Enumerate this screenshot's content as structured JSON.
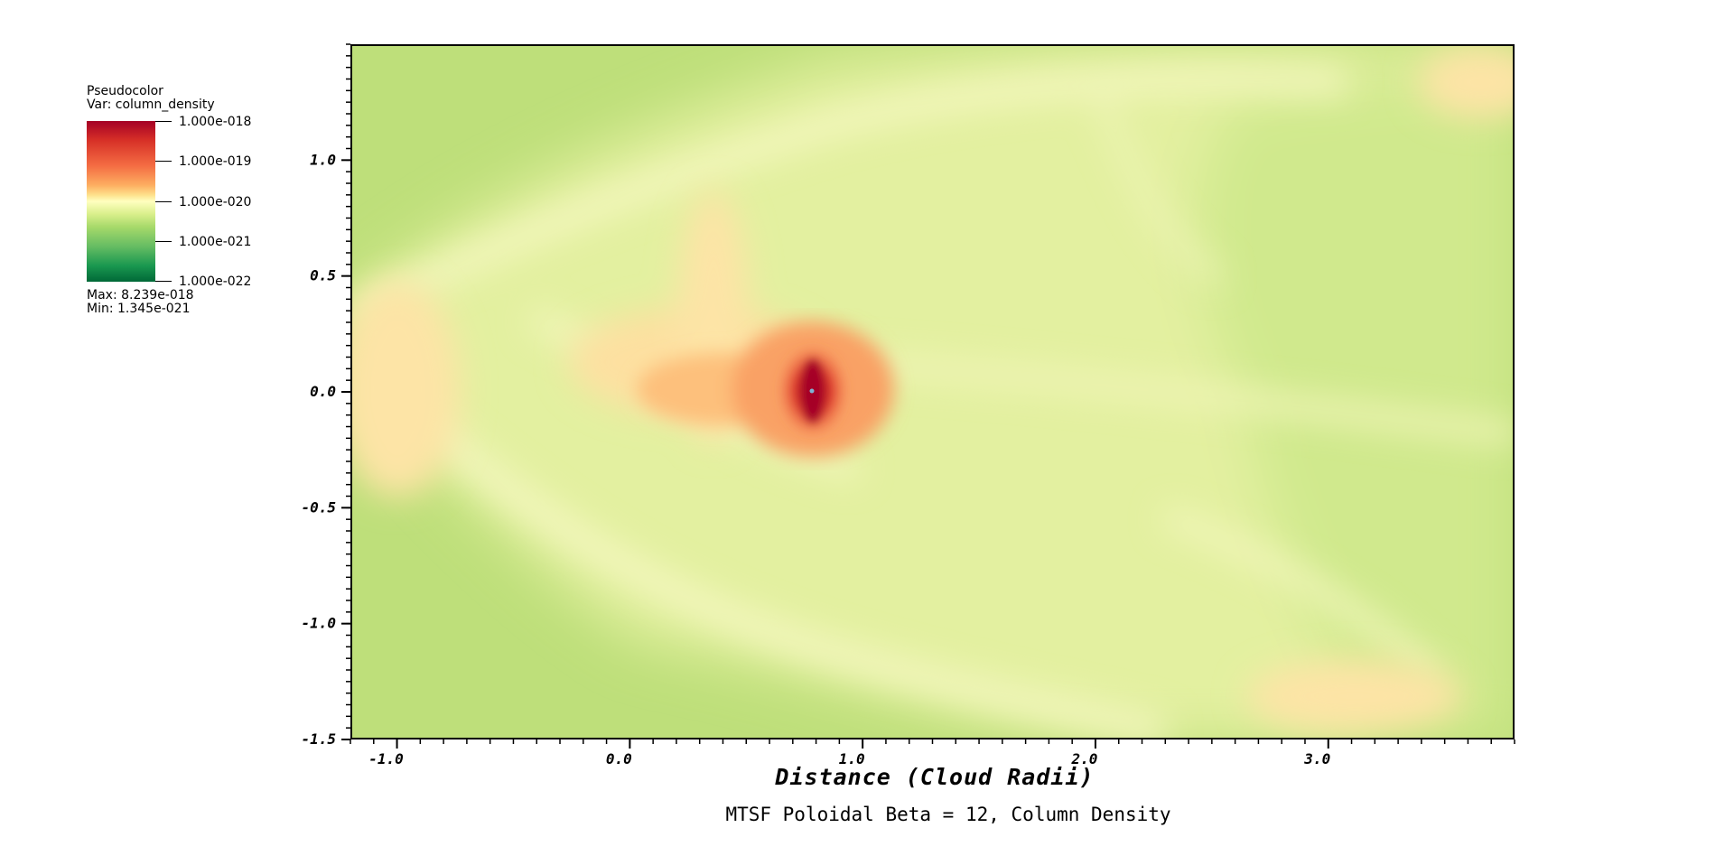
{
  "chart_data": {
    "type": "heatmap",
    "title": "MTSF Poloidal Beta = 12, Column Density",
    "xlabel": "Distance (Cloud Radii)",
    "ylabel": "",
    "xlim": [
      -1.2,
      3.8
    ],
    "ylim": [
      -1.5,
      1.5
    ],
    "x_ticks": [
      -1.0,
      0.0,
      1.0,
      2.0,
      3.0
    ],
    "x_tick_labels": [
      "-1.0",
      "0.0",
      "1.0",
      "2.0",
      "3.0"
    ],
    "y_ticks": [
      1.0,
      0.5,
      0.0,
      -0.5,
      -1.0,
      -1.5
    ],
    "y_tick_labels": [
      "1.0",
      "0.5",
      "0.0",
      "-0.5",
      "-1.0",
      "-1.5"
    ],
    "colormap": "red-yellow-green (log scale)",
    "log_scale": true,
    "peak_location": [
      0.78,
      0.0
    ],
    "legend": {
      "plot_type": "Pseudocolor",
      "variable": "Var: column_density",
      "ticks": [
        "1.000e-018",
        "1.000e-019",
        "1.000e-020",
        "1.000e-021",
        "1.000e-022"
      ],
      "max_text": "Max:  8.239e-018",
      "min_text": "Min:  1.345e-021",
      "placement": "top-left"
    },
    "colors": {
      "high": "#a50026",
      "mid": "#ffffbf",
      "low": "#006837",
      "background": "#bedf7a"
    }
  }
}
